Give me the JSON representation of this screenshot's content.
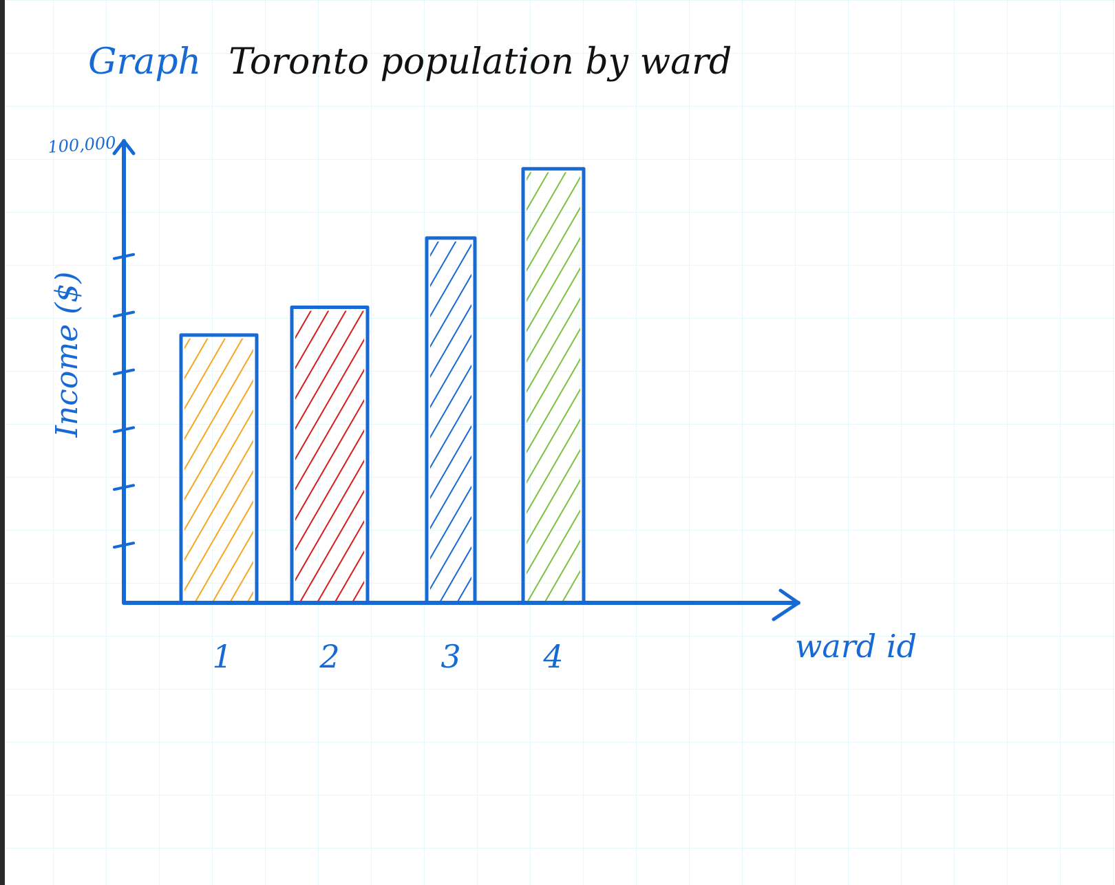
{
  "chart_data": {
    "type": "bar",
    "title_prefix": "Graph",
    "title": "Toronto population by ward",
    "xlabel": "ward id",
    "ylabel": "Income ($)",
    "y_max_label": "100,000",
    "ylim": [
      0,
      100000
    ],
    "y_ticks": [
      12500,
      25000,
      37500,
      50000,
      62500,
      75000
    ],
    "categories": [
      "1",
      "2",
      "3",
      "4"
    ],
    "values": [
      58000,
      64000,
      79000,
      94000
    ],
    "colors": [
      "#f5a623",
      "#d81b1b",
      "#1769d4",
      "#7dc142"
    ],
    "axis_color": "#1769d4",
    "grid": true
  }
}
